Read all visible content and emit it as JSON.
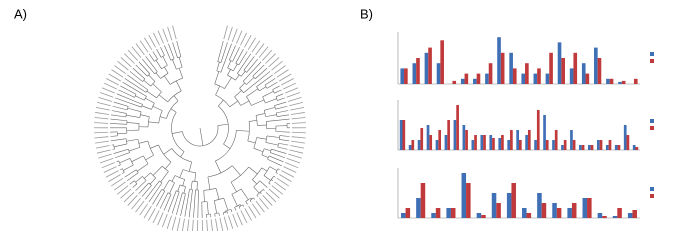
{
  "panels": {
    "a": "A)",
    "b": "B)"
  },
  "chart_data": [
    {
      "type": "bar",
      "ylim": [
        0,
        0.5
      ],
      "series": [
        {
          "color": "#3f6fb5",
          "values": [
            0.15,
            0.2,
            0.3,
            0.2,
            0,
            0.05,
            0.05,
            0.1,
            0.45,
            0.3,
            0.1,
            0.1,
            0.1,
            0.4,
            0.15,
            0.2,
            0.35,
            0.05,
            0.02,
            0
          ]
        },
        {
          "color": "#c0393b",
          "values": [
            0.15,
            0.25,
            0.35,
            0.42,
            0.03,
            0.1,
            0.1,
            0.2,
            0.3,
            0.15,
            0.2,
            0.15,
            0.3,
            0.25,
            0.3,
            0.1,
            0.25,
            0.05,
            0.03,
            0.05
          ]
        }
      ]
    },
    {
      "type": "bar",
      "ylim": [
        0,
        0.5
      ],
      "series": [
        {
          "color": "#3f6fb5",
          "values": [
            0.3,
            0.05,
            0.1,
            0.25,
            0.1,
            0.15,
            0.3,
            0.25,
            0.1,
            0.15,
            0.15,
            0.12,
            0.1,
            0.2,
            0.15,
            0.1,
            0.35,
            0.1,
            0.05,
            0.2,
            0.05,
            0.05,
            0.1,
            0.05,
            0.05,
            0.25,
            0.05
          ]
        },
        {
          "color": "#c0393b",
          "values": [
            0.3,
            0.1,
            0.22,
            0.15,
            0.2,
            0.3,
            0.45,
            0.2,
            0.15,
            0.15,
            0.12,
            0.15,
            0.2,
            0.1,
            0.2,
            0.4,
            0.1,
            0.2,
            0.1,
            0.1,
            0.05,
            0.05,
            0.1,
            0.1,
            0.05,
            0.15,
            0.03
          ]
        }
      ]
    },
    {
      "type": "bar",
      "ylim": [
        0,
        0.5
      ],
      "series": [
        {
          "color": "#3f6fb5",
          "values": [
            0.05,
            0.2,
            0.05,
            0.1,
            0.45,
            0.05,
            0.25,
            0.25,
            0.1,
            0.25,
            0.15,
            0.1,
            0.2,
            0.05,
            0.02,
            0.05
          ]
        },
        {
          "color": "#c0393b",
          "values": [
            0.1,
            0.35,
            0.1,
            0.1,
            0.35,
            0.03,
            0.15,
            0.35,
            0.05,
            0.15,
            0.1,
            0.15,
            0.2,
            0.02,
            0.1,
            0.08
          ]
        }
      ]
    }
  ]
}
